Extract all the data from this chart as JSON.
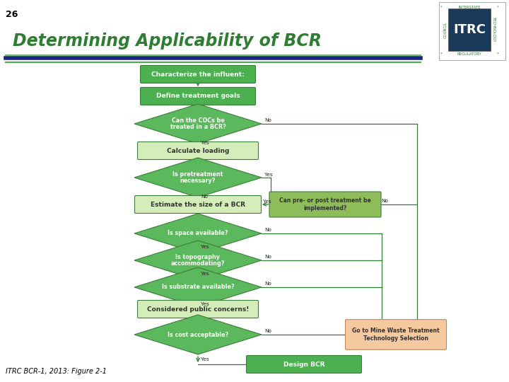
{
  "title": "Determining Applicability of BCR",
  "slide_number": "26",
  "caption": "ITRC BCR-1, 2013: Figure 2-1",
  "background_color": "#ffffff",
  "title_color": "#2e7d32",
  "rect_fill_dark": "#4caf50",
  "rect_fill_light": "#d4edba",
  "diamond_fill": "#5cb85c",
  "side_box_fill": "#8fbc5a",
  "orange_box_fill": "#f5c9a0",
  "line_color": "#2e7d32",
  "sep_green": "#4caf50",
  "sep_blue": "#1a237e",
  "sep_green2": "#6dbf67"
}
